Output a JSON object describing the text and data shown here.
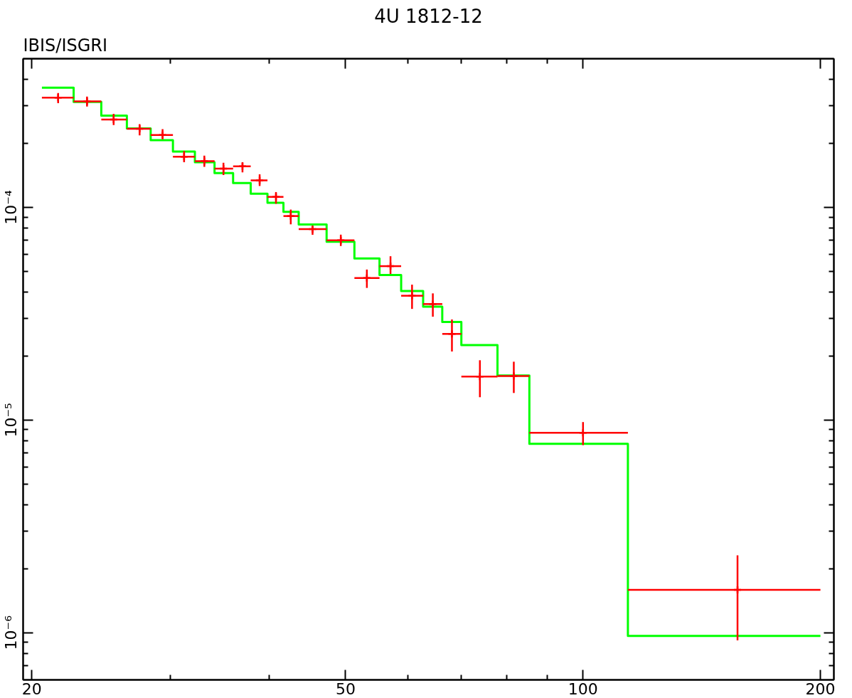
{
  "chart_data": {
    "type": "scatter",
    "title": "4U 1812-12",
    "annotations": [
      "IBIS/ISGRI"
    ],
    "log": "xy",
    "grid": false,
    "xlim": [
      19.5,
      208
    ],
    "ylim": [
      6e-07,
      0.0005
    ],
    "xticks": [
      20,
      {
        "value": 30,
        "label": null
      },
      {
        "value": 40,
        "label": null
      },
      50,
      {
        "value": 60,
        "label": null
      },
      {
        "value": 70,
        "label": null
      },
      {
        "value": 80,
        "label": null
      },
      {
        "value": 90,
        "label": null
      },
      100,
      200
    ],
    "yticks": [
      {
        "value": 7e-07,
        "label": null
      },
      {
        "value": 8e-07,
        "label": null
      },
      {
        "value": 9e-07,
        "label": null
      },
      {
        "value": 1e-06,
        "label": "10⁻⁶"
      },
      {
        "value": 2e-06,
        "label": null
      },
      {
        "value": 3e-06,
        "label": null
      },
      {
        "value": 4e-06,
        "label": null
      },
      {
        "value": 5e-06,
        "label": null
      },
      {
        "value": 6e-06,
        "label": null
      },
      {
        "value": 7e-06,
        "label": null
      },
      {
        "value": 8e-06,
        "label": null
      },
      {
        "value": 9e-06,
        "label": null
      },
      {
        "value": 1e-05,
        "label": "10⁻⁵"
      },
      {
        "value": 2e-05,
        "label": null
      },
      {
        "value": 3e-05,
        "label": null
      },
      {
        "value": 4e-05,
        "label": null
      },
      {
        "value": 5e-05,
        "label": null
      },
      {
        "value": 6e-05,
        "label": null
      },
      {
        "value": 7e-05,
        "label": null
      },
      {
        "value": 8e-05,
        "label": null
      },
      {
        "value": 9e-05,
        "label": null
      },
      {
        "value": 0.0001,
        "label": "10⁻⁴"
      },
      {
        "value": 0.0002,
        "label": null
      },
      {
        "value": 0.0003,
        "label": null
      },
      {
        "value": 0.0004,
        "label": null
      }
    ],
    "series": [
      {
        "type": "step",
        "color": "#00ff00",
        "x": [
          20.6,
          22.6,
          24.5,
          26.4,
          28.3,
          30.2,
          32.2,
          34.1,
          36.0,
          37.9,
          39.8,
          41.7,
          43.6,
          47.3,
          51.3,
          55.2,
          58.8,
          62.7,
          66.3,
          70.1,
          77.9,
          85.5,
          114,
          200
        ],
        "values": [
          0.000365,
          0.000313,
          0.00027,
          0.000235,
          0.000207,
          0.000183,
          0.000163,
          0.000145,
          0.00013,
          0.000116,
          0.000105,
          9.53e-05,
          8.31e-05,
          6.89e-05,
          5.75e-05,
          4.81e-05,
          4.04e-05,
          3.41e-05,
          2.89e-05,
          2.25e-05,
          1.62e-05,
          7.73e-06,
          9.66e-07,
          9.66e-07
        ]
      },
      {
        "color": "#ff0000",
        "x": [
          21.6,
          23.5,
          25.4,
          27.4,
          29.3,
          31.2,
          33.1,
          35.0,
          37.0,
          38.9,
          40.8,
          42.6,
          45.4,
          49.3,
          53.2,
          57.0,
          60.7,
          64.5,
          68.2,
          74.0,
          81.7,
          100,
          157
        ],
        "values": [
          0.000328,
          0.000315,
          0.000259,
          0.000234,
          0.000219,
          0.000173,
          0.000165,
          0.000152,
          0.000156,
          0.000134,
          0.000112,
          9.1e-05,
          7.9e-05,
          7e-05,
          4.65e-05,
          5.29e-05,
          3.84e-05,
          3.51e-05,
          2.54e-05,
          1.6e-05,
          1.61e-05,
          8.71e-06,
          1.59e-06
        ],
        "xerrors": [
          [
            20.6,
            22.6
          ],
          [
            22.6,
            24.5
          ],
          [
            24.5,
            26.4
          ],
          [
            26.4,
            28.3
          ],
          [
            28.3,
            30.2
          ],
          [
            30.2,
            32.2
          ],
          [
            32.2,
            34.1
          ],
          [
            34.1,
            36.0
          ],
          [
            36.0,
            37.9
          ],
          [
            37.9,
            39.8
          ],
          [
            39.8,
            41.7
          ],
          [
            41.7,
            43.6
          ],
          [
            43.6,
            47.3
          ],
          [
            47.3,
            51.3
          ],
          [
            51.3,
            55.2
          ],
          [
            55.2,
            58.8
          ],
          [
            58.8,
            62.7
          ],
          [
            62.7,
            66.3
          ],
          [
            66.3,
            70.1
          ],
          [
            70.1,
            77.9
          ],
          [
            77.9,
            85.5
          ],
          [
            85.5,
            114
          ],
          [
            114,
            200
          ]
        ],
        "errors": [
          [
            0.000309,
            0.000345
          ],
          [
            0.000298,
            0.000332
          ],
          [
            0.000244,
            0.000275
          ],
          [
            0.000218,
            0.000246
          ],
          [
            0.000209,
            0.000233
          ],
          [
            0.000163,
            0.000184
          ],
          [
            0.000155,
            0.000175
          ],
          [
            0.000142,
            0.000162
          ],
          [
            0.000146,
            0.000163
          ],
          [
            0.000126,
            0.000143
          ],
          [
            0.000104,
            0.000118
          ],
          [
            8.32e-05,
            9.76e-05
          ],
          [
            7.43e-05,
            8.15e-05
          ],
          [
            6.58e-05,
            7.44e-05
          ],
          [
            4.18e-05,
            5.1e-05
          ],
          [
            4.86e-05,
            5.89e-05
          ],
          [
            3.33e-05,
            4.33e-05
          ],
          [
            3.06e-05,
            3.94e-05
          ],
          [
            2.1e-05,
            2.97e-05
          ],
          [
            1.28e-05,
            1.91e-05
          ],
          [
            1.34e-05,
            1.88e-05
          ],
          [
            7.62e-06,
            9.78e-06
          ],
          [
            9.2e-07,
            2.31e-06
          ]
        ]
      }
    ]
  }
}
